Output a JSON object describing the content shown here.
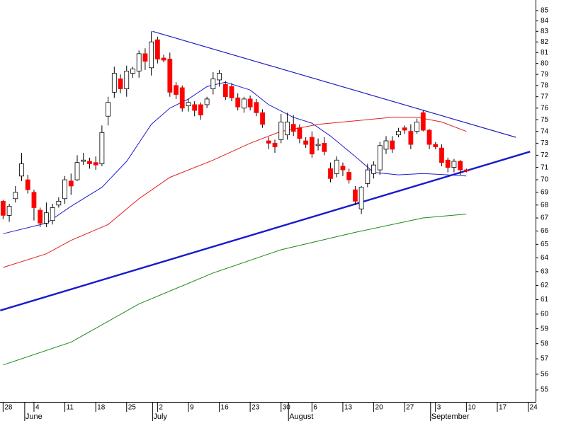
{
  "chart_data": {
    "type": "candlestick",
    "log_scale": true,
    "colors": {
      "up": "#ffffff",
      "down": "#ff0000",
      "edge": "#000000"
    },
    "open": [
      68.3,
      67.2,
      68.5,
      70.3,
      70.0,
      69.0,
      67.6,
      66.6,
      66.8,
      68.0,
      68.5,
      69.9,
      70.0,
      71.5,
      71.5,
      71.4,
      71.3,
      75.3,
      77.4,
      78.6,
      77.7,
      79.1,
      79.3,
      80.9,
      79.6,
      82.2,
      80.5,
      80.4,
      78.0,
      77.8,
      76.2,
      76.3,
      76.3,
      76.3,
      77.7,
      78.5,
      78.1,
      77.9,
      76.9,
      76.0,
      76.8,
      76.5,
      75.6,
      73.2,
      73.0,
      73.3,
      73.7,
      74.6,
      74.3,
      73.2,
      73.5,
      72.8,
      73.0,
      70.9,
      70.5,
      71.1,
      70.6,
      69.2,
      67.7,
      69.7,
      70.5,
      70.8,
      72.5,
      73.2,
      73.7,
      74.3,
      74.0,
      74.0,
      75.6,
      74.1,
      72.9,
      72.6,
      71.6,
      71.0,
      71.5,
      70.8
    ],
    "high": [
      68.4,
      68.1,
      69.5,
      72.2,
      70.4,
      69.2,
      67.8,
      68.2,
      68.1,
      68.6,
      70.3,
      70.5,
      72.0,
      72.2,
      71.8,
      71.9,
      74.5,
      77.0,
      79.7,
      79.0,
      79.8,
      79.7,
      81.2,
      81.4,
      83.0,
      82.5,
      80.8,
      81.0,
      78.3,
      78.0,
      76.8,
      76.6,
      76.5,
      77.0,
      79.2,
      79.4,
      78.4,
      78.2,
      77.3,
      77.0,
      77.1,
      76.8,
      75.9,
      73.5,
      73.3,
      75.5,
      75.6,
      75.4,
      74.6,
      73.5,
      74.0,
      73.4,
      73.5,
      71.4,
      71.9,
      71.4,
      70.9,
      69.5,
      69.5,
      71.3,
      71.5,
      73.1,
      73.6,
      73.6,
      74.3,
      74.5,
      74.6,
      75.1,
      75.8,
      74.2,
      73.1,
      72.9,
      71.8,
      71.7,
      71.6,
      70.9
    ],
    "low": [
      66.9,
      66.7,
      68.2,
      69.9,
      68.9,
      66.8,
      66.3,
      66.3,
      66.5,
      67.8,
      68.1,
      68.8,
      69.9,
      71.2,
      70.9,
      70.8,
      71.1,
      74.5,
      76.9,
      77.3,
      77.0,
      78.7,
      78.7,
      79.4,
      78.9,
      80.0,
      80.1,
      77.0,
      76.8,
      75.7,
      75.7,
      75.3,
      75.0,
      76.0,
      77.2,
      77.9,
      76.7,
      76.6,
      75.8,
      75.6,
      75.8,
      75.3,
      74.3,
      72.5,
      72.2,
      73.0,
      73.3,
      73.6,
      73.0,
      72.6,
      71.8,
      72.4,
      72.0,
      69.8,
      70.2,
      70.3,
      69.7,
      68.0,
      67.3,
      69.4,
      70.1,
      70.4,
      72.1,
      72.2,
      73.5,
      73.8,
      72.5,
      73.8,
      74.0,
      72.5,
      72.5,
      71.1,
      70.6,
      70.6,
      70.4,
      70.6
    ],
    "close": [
      67.2,
      67.9,
      69.0,
      71.3,
      69.2,
      67.8,
      66.6,
      67.4,
      67.8,
      68.3,
      70.0,
      69.5,
      71.4,
      71.6,
      71.3,
      71.2,
      73.9,
      76.5,
      79.1,
      77.7,
      79.3,
      79.5,
      80.9,
      80.2,
      82.0,
      80.4,
      80.3,
      77.4,
      77.2,
      76.0,
      76.5,
      75.8,
      75.4,
      76.8,
      78.6,
      79.1,
      77.0,
      76.9,
      76.1,
      76.8,
      76.1,
      75.6,
      74.6,
      73.0,
      72.7,
      74.8,
      74.8,
      74.0,
      73.4,
      72.9,
      72.1,
      72.9,
      72.3,
      70.1,
      71.6,
      70.8,
      70.0,
      68.3,
      69.4,
      70.8,
      71.2,
      72.8,
      73.2,
      72.5,
      74.0,
      74.1,
      72.9,
      74.8,
      74.1,
      72.9,
      72.7,
      71.4,
      71.0,
      71.5,
      70.8,
      70.7
    ],
    "ylim": [
      54.25,
      86.04
    ],
    "yticks": [
      55,
      56,
      57,
      58,
      59,
      60,
      61,
      62,
      63,
      64,
      65,
      66,
      67,
      68,
      69,
      70,
      71,
      72,
      73,
      74,
      75,
      76,
      77,
      78,
      79,
      80,
      81,
      82,
      83,
      84,
      85
    ],
    "xlim": [
      -0.5,
      86.2
    ],
    "xticks": [
      {
        "value": 0,
        "label": "28"
      },
      {
        "value": 5,
        "label": "4"
      },
      {
        "value": 10,
        "label": "11"
      },
      {
        "value": 15,
        "label": "18"
      },
      {
        "value": 20,
        "label": "25"
      },
      {
        "value": 25,
        "label": "2"
      },
      {
        "value": 30,
        "label": "9"
      },
      {
        "value": 35,
        "label": "16"
      },
      {
        "value": 40,
        "label": "23"
      },
      {
        "value": 45,
        "label": "30"
      },
      {
        "value": 50,
        "label": "6"
      },
      {
        "value": 55,
        "label": "13"
      },
      {
        "value": 60,
        "label": "20"
      },
      {
        "value": 65,
        "label": "27"
      },
      {
        "value": 70,
        "label": "3"
      },
      {
        "value": 75,
        "label": "10"
      },
      {
        "value": 80,
        "label": "17"
      },
      {
        "value": 85,
        "label": "24"
      }
    ],
    "months": [
      {
        "value": 3.5,
        "label": "June"
      },
      {
        "value": 24.2,
        "label": "July"
      },
      {
        "value": 46.2,
        "label": "August"
      },
      {
        "value": 69.2,
        "label": "September"
      }
    ],
    "overlays": [
      {
        "color": "#1f1fd0",
        "x": [
          0,
          7,
          11,
          16,
          20,
          24,
          27,
          30,
          33,
          36,
          40,
          43,
          47,
          50,
          53,
          57,
          60,
          64,
          68,
          72,
          75
        ],
        "values": [
          65.8,
          66.6,
          67.9,
          69.4,
          71.5,
          74.6,
          76.0,
          76.8,
          77.9,
          78.3,
          77.6,
          76.3,
          75.2,
          74.7,
          73.6,
          71.9,
          70.6,
          70.4,
          70.5,
          70.4,
          70.3
        ]
      },
      {
        "color": "#e02020",
        "x": [
          0,
          7,
          11,
          17,
          22,
          27,
          34,
          40,
          45,
          51,
          57,
          63,
          67,
          71,
          75
        ],
        "values": [
          63.3,
          64.3,
          65.3,
          66.5,
          68.5,
          70.2,
          71.6,
          73.0,
          74.0,
          74.6,
          74.9,
          75.2,
          75.2,
          74.8,
          74.0
        ]
      },
      {
        "color": "#1a8a1a",
        "x": [
          0,
          11,
          22,
          34,
          45,
          57,
          68,
          75
        ],
        "values": [
          56.6,
          58.1,
          60.7,
          62.9,
          64.6,
          65.9,
          67.0,
          67.3
        ]
      }
    ],
    "trendlines": [
      {
        "color": "#2020c0",
        "x": [
          24.2,
          83
        ],
        "values": [
          83.0,
          73.5
        ]
      },
      {
        "color": "#1a1acc",
        "x": [
          -0.46,
          85.3
        ],
        "values": [
          60.25,
          72.3
        ]
      }
    ]
  }
}
